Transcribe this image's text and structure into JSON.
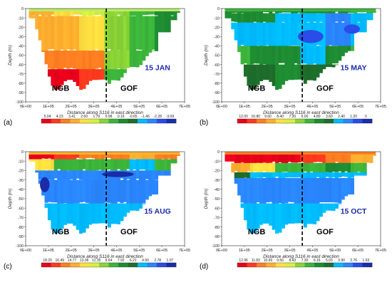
{
  "chart_data": [
    {
      "type": "heatmap",
      "panel_label": "(a)",
      "date_label": "15 JAN",
      "regions": [
        "NGB",
        "GOF"
      ],
      "xlabel": "Distance along S116  in east direction",
      "ylabel": "Depth (m)",
      "xticks": [
        "0E+00",
        "1E+05",
        "2E+05",
        "3E+05",
        "4E+05",
        "5E+05",
        "6E+05",
        "7E+05"
      ],
      "yticks": [
        "0",
        "-10",
        "-20",
        "-30",
        "-40",
        "-50",
        "-60",
        "-70",
        "-80",
        "-90",
        "-100"
      ],
      "xlim": [
        0,
        700000
      ],
      "ylim": [
        -100,
        0
      ],
      "divider_x": 355000,
      "colorbar": {
        "ticks": [
          "5.04",
          "4.23",
          "3.41",
          "2.60",
          "1.79",
          "0.98",
          "0.16",
          "-0.65",
          "-1.46",
          "-2.28",
          "-3.09"
        ],
        "colors": [
          "#e8001c",
          "#ff3a1e",
          "#ff7e22",
          "#ffb02e",
          "#ffe040",
          "#d8f03c",
          "#8ad436",
          "#3cb43a",
          "#1e8c32",
          "#1e6e2c",
          "#00bcff",
          "#2a86ff",
          "#2a4ce8",
          "#1a2ca8"
        ]
      }
    },
    {
      "type": "heatmap",
      "panel_label": "(b)",
      "date_label": "15 MAY",
      "regions": [
        "NGB",
        "GOF"
      ],
      "xlabel": "Distance along S116  in east direction",
      "ylabel": "Depth (m)",
      "xticks": [
        "0E+00",
        "1E+05",
        "2E+05",
        "3E+05",
        "4E+05",
        "5E+05",
        "6E+05",
        "7E+05"
      ],
      "yticks": [
        "0",
        "-10",
        "-20",
        "-30",
        "-40",
        "-50",
        "-60",
        "-70",
        "-80",
        "-90",
        "-100"
      ],
      "xlim": [
        0,
        700000
      ],
      "ylim": [
        -100,
        0
      ],
      "divider_x": 355000,
      "colorbar": {
        "ticks": [
          "12.00",
          "10.80",
          "9.60",
          "8.40",
          "7.20",
          "6.00",
          "4.80",
          "3.60",
          "2.40",
          "1.20",
          "0"
        ],
        "colors": [
          "#e8001c",
          "#ff3a1e",
          "#ff7e22",
          "#ffb02e",
          "#ffe040",
          "#d8f03c",
          "#8ad436",
          "#3cb43a",
          "#1e8c32",
          "#1e6e2c",
          "#00bcff",
          "#2a86ff",
          "#2a4ce8",
          "#1a2ca8"
        ]
      }
    },
    {
      "type": "heatmap",
      "panel_label": "(c)",
      "date_label": "15 AUG",
      "regions": [
        "NGB",
        "GOF"
      ],
      "xlabel": "Distance along S116  in east direction",
      "ylabel": "Depth (m)",
      "xticks": [
        "0E+00",
        "1E+05",
        "2E+05",
        "3E+05",
        "4E+05",
        "5E+05",
        "6E+05",
        "7E+05"
      ],
      "yticks": [
        "0",
        "-10",
        "-20",
        "-30",
        "-40",
        "-50",
        "-60",
        "-70",
        "-80",
        "-90",
        "-100"
      ],
      "xlim": [
        0,
        700000
      ],
      "ylim": [
        -100,
        0
      ],
      "divider_x": 355000,
      "colorbar": {
        "ticks": [
          "18.20",
          "16.49",
          "14.77",
          "13.06",
          "11.35",
          "9.64",
          "7.92",
          "6.21",
          "4.50",
          "2.78",
          "1.07"
        ],
        "colors": [
          "#e8001c",
          "#ff3a1e",
          "#ff7e22",
          "#ffb02e",
          "#ffe040",
          "#d8f03c",
          "#8ad436",
          "#3cb43a",
          "#1e8c32",
          "#1e6e2c",
          "#00bcff",
          "#2a86ff",
          "#2a4ce8",
          "#1a2ca8"
        ]
      }
    },
    {
      "type": "heatmap",
      "panel_label": "(d)",
      "date_label": "15 OCT",
      "regions": [
        "NGB",
        "GOF"
      ],
      "xlabel": "Distance along S116  in east direction",
      "ylabel": "Depth (m)",
      "xticks": [
        "0E+00",
        "1E+05",
        "2E+05",
        "3E+05",
        "4E+05",
        "5E+05",
        "6E+05",
        "7E+05"
      ],
      "yticks": [
        "0",
        "-10",
        "-20",
        "-30",
        "-40",
        "-50",
        "-60",
        "-70",
        "-80",
        "-90",
        "-100"
      ],
      "xlim": [
        0,
        700000
      ],
      "ylim": [
        -100,
        0
      ],
      "divider_x": 355000,
      "colorbar": {
        "ticks": [
          "12.96",
          "11.83",
          "10.69",
          "9.56",
          "8.43",
          "7.30",
          "6.16",
          "5.03",
          "3.90",
          "2.76",
          "1.63"
        ],
        "colors": [
          "#e8001c",
          "#ff3a1e",
          "#ff7e22",
          "#ffb02e",
          "#ffe040",
          "#d8f03c",
          "#8ad436",
          "#3cb43a",
          "#1e8c32",
          "#1e6e2c",
          "#00bcff",
          "#2a86ff",
          "#2a4ce8",
          "#1a2ca8"
        ]
      }
    }
  ]
}
